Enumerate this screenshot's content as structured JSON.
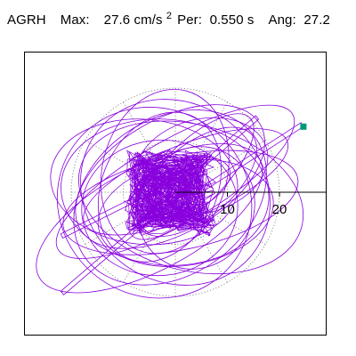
{
  "header": {
    "station": "AGRH",
    "max_label": "Max:",
    "max_value": "27.6",
    "max_unit": "cm/s",
    "max_unit_exp": "2",
    "period_label": "Per:",
    "period_value": "0.550 s",
    "angle_label": "Ang:",
    "angle_value": "27.2"
  },
  "chart_data": {
    "type": "scatter",
    "subtype": "polar-particle-motion",
    "title": "",
    "xlabel": "",
    "ylabel": "",
    "radial_unit": "cm/s^2",
    "radial_ticks": [
      10,
      20
    ],
    "radial_tick_labels": [
      "10",
      "20"
    ],
    "grid_circles": [
      10,
      20
    ],
    "grid_style": "dotted",
    "peak_value": 27.6,
    "peak_angle_deg": 27.2,
    "colors": {
      "trace": "#8800dd",
      "peak_marker": "#009977",
      "grid": "#777777",
      "axis": "#000000"
    },
    "series": [
      {
        "ellipses": [
          [
            4,
            2,
            14,
            7,
            40
          ],
          [
            -3,
            1,
            11,
            15,
            -25
          ],
          [
            2,
            -4,
            17,
            10,
            10
          ],
          [
            -1,
            3,
            20,
            11,
            30
          ],
          [
            3,
            -1,
            22,
            14,
            -15
          ],
          [
            -4,
            -2,
            18,
            19,
            55
          ],
          [
            1,
            1,
            10,
            5,
            20
          ],
          [
            -2,
            4,
            16,
            12,
            75
          ],
          [
            5,
            5,
            13,
            9,
            15
          ],
          [
            -5,
            -5,
            24,
            10,
            28
          ],
          [
            0,
            0,
            19,
            17,
            -40
          ],
          [
            2,
            2,
            21,
            7,
            22
          ],
          [
            -3,
            -3,
            15,
            13,
            5
          ],
          [
            4,
            -3,
            12,
            11,
            60
          ],
          [
            -6,
            2,
            18,
            12,
            -5
          ],
          [
            1,
            -2,
            23,
            9,
            12
          ],
          [
            0,
            2,
            26,
            8,
            30
          ],
          [
            -2,
            0,
            14,
            20,
            85
          ],
          [
            3,
            3,
            16,
            6,
            45
          ],
          [
            -1,
            -1,
            20,
            15,
            35
          ]
        ],
        "core": {
          "turns": 70,
          "cx": -1,
          "cy": 0,
          "rmax": 9
        },
        "spikes": [
          {
            "from": [
              5,
              1
            ],
            "to": [
              24.6,
              12.6
            ]
          },
          {
            "from": [
              -2,
              -3
            ],
            "to": [
              -22,
              -19
            ]
          },
          {
            "from": [
              -4,
              0
            ],
            "to": [
              -22,
              -8
            ]
          },
          {
            "from": [
              2,
              3
            ],
            "to": [
              16,
              14
            ]
          }
        ]
      }
    ],
    "peak_point": {
      "x": 24.6,
      "y": 12.6
    }
  }
}
